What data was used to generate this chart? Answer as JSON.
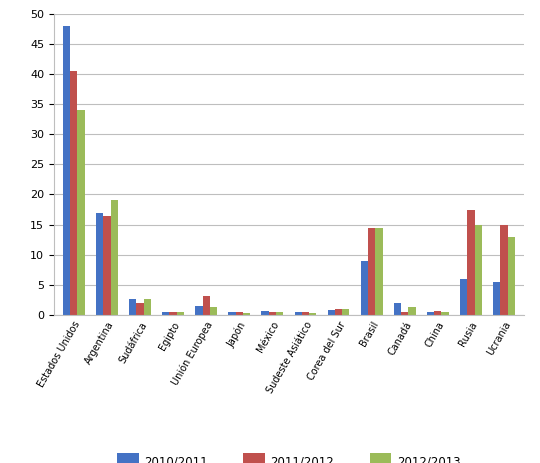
{
  "categories": [
    "Estados Unidos",
    "Argentina",
    "Sudáfrica",
    "Egipto",
    "Unión Europea",
    "Japón",
    "México",
    "Sudeste Asiático",
    "Corea del Sur",
    "Brasil",
    "Canadá",
    "China",
    "Rusia",
    "Ucrania"
  ],
  "series": {
    "2010/2011": [
      48,
      17,
      2.7,
      0.5,
      1.5,
      0.5,
      0.7,
      0.4,
      0.8,
      9,
      2,
      0.5,
      6,
      5.5
    ],
    "2011/2012": [
      40.5,
      16.5,
      2.0,
      0.5,
      3.2,
      0.4,
      0.5,
      0.4,
      0.9,
      14.5,
      0.5,
      0.6,
      17.5,
      15
    ],
    "2012/2013": [
      34,
      19,
      2.7,
      0.4,
      1.3,
      0.3,
      0.4,
      0.3,
      0.9,
      14.5,
      1.3,
      0.5,
      15,
      13
    ]
  },
  "colors": {
    "2010/2011": "#4472C4",
    "2011/2012": "#C0504D",
    "2012/2013": "#9BBB59"
  },
  "ylim": [
    0,
    50
  ],
  "yticks": [
    0,
    5,
    10,
    15,
    20,
    25,
    30,
    35,
    40,
    45,
    50
  ],
  "background_color": "#FFFFFF",
  "grid_color": "#BEBEBE",
  "bar_width": 0.22,
  "figsize": [
    5.4,
    4.63
  ],
  "dpi": 100
}
